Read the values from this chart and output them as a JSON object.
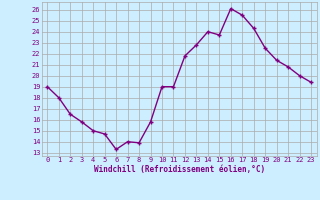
{
  "x": [
    0,
    1,
    2,
    3,
    4,
    5,
    6,
    7,
    8,
    9,
    10,
    11,
    12,
    13,
    14,
    15,
    16,
    17,
    18,
    19,
    20,
    21,
    22,
    23
  ],
  "y": [
    19,
    18,
    16.5,
    15.8,
    15,
    14.7,
    13.3,
    14,
    13.9,
    15.8,
    19,
    19,
    21.8,
    22.8,
    24,
    23.7,
    26.1,
    25.5,
    24.3,
    22.5,
    21.4,
    20.8,
    20,
    19.4
  ],
  "line_color": "#800080",
  "marker": "+",
  "marker_size": 3,
  "marker_linewidth": 1.0,
  "bg_color": "#cceeff",
  "grid_color": "#aaaaaa",
  "xlabel": "Windchill (Refroidissement éolien,°C)",
  "xlabel_color": "#800080",
  "ylabel_ticks": [
    13,
    14,
    15,
    16,
    17,
    18,
    19,
    20,
    21,
    22,
    23,
    24,
    25,
    26
  ],
  "ylim": [
    12.7,
    26.7
  ],
  "xlim": [
    -0.5,
    23.5
  ],
  "tick_label_color": "#800080",
  "tick_fontsize": 5.0,
  "xlabel_fontsize": 5.5,
  "line_width": 1.0
}
